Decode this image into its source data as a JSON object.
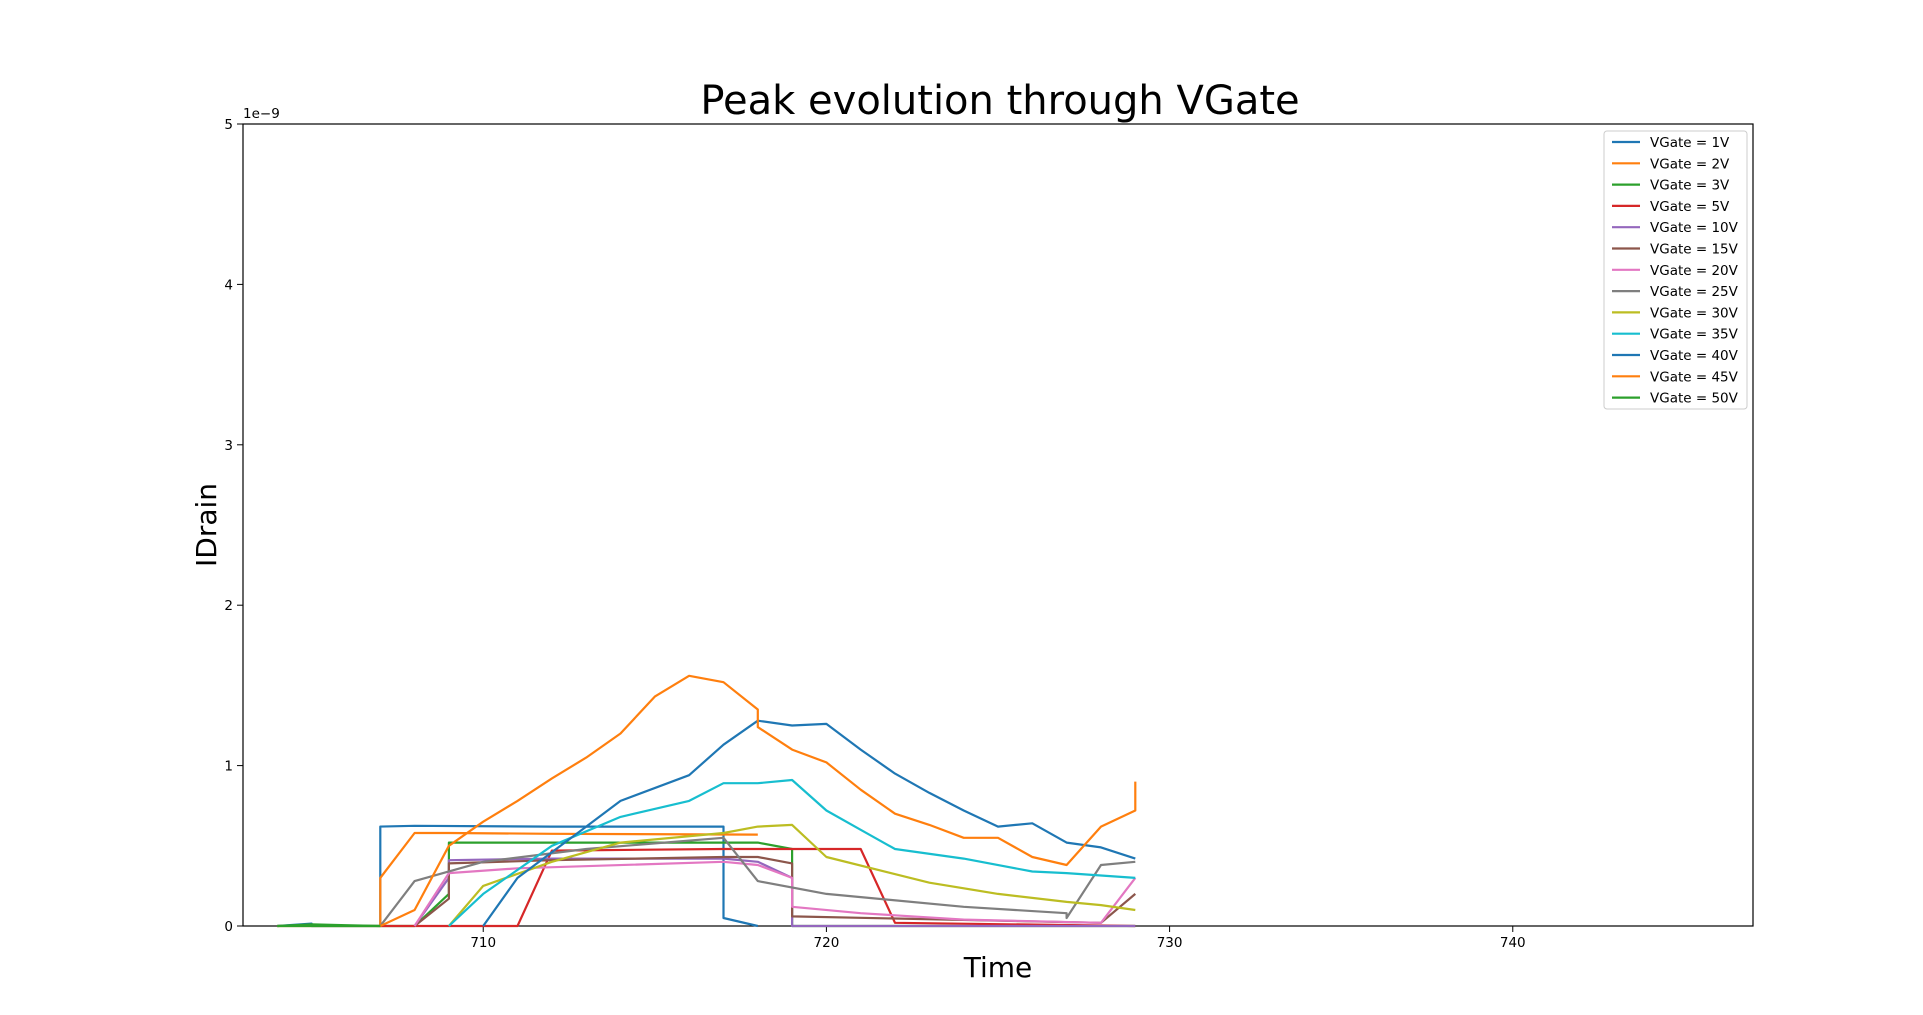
{
  "chart_data": {
    "type": "line",
    "title": "Peak evolution through VGate",
    "xlabel": "Time",
    "ylabel": "IDrain",
    "xlim": [
      703.0,
      747.0
    ],
    "ylim": [
      0,
      5e-09
    ],
    "y_offset_label": "1e−9",
    "x_ticks": [
      710,
      720,
      730,
      740
    ],
    "x_tick_labels": [
      "710",
      "720",
      "730",
      "740"
    ],
    "y_ticks": [
      0,
      1e-09,
      2e-09,
      3e-09,
      4e-09,
      5e-09
    ],
    "y_tick_labels": [
      "0",
      "1",
      "2",
      "3",
      "4",
      "5"
    ],
    "grid": false,
    "legend_position": "top-right",
    "series": [
      {
        "name": "VGate = 1V",
        "color": "#1f77b4",
        "x": [
          704,
          705,
          705,
          707,
          707,
          708,
          712,
          717,
          717,
          718,
          718
        ],
        "y": [
          0,
          1.5e-11,
          0,
          0,
          6.2e-10,
          6.25e-10,
          6.2e-10,
          6.2e-10,
          5e-11,
          0,
          0
        ]
      },
      {
        "name": "VGate = 2V",
        "color": "#ff7f0e",
        "x": [
          704,
          707,
          707,
          708,
          709,
          712,
          718
        ],
        "y": [
          0,
          0,
          3e-10,
          5.8e-10,
          5.8e-10,
          5.75e-10,
          5.7e-10
        ]
      },
      {
        "name": "VGate = 3V",
        "color": "#2ca02c",
        "x": [
          704,
          708,
          709,
          709,
          712,
          718,
          719,
          719,
          729
        ],
        "y": [
          0,
          0,
          2e-10,
          5.2e-10,
          5.2e-10,
          5.2e-10,
          4.8e-10,
          0,
          0
        ]
      },
      {
        "name": "VGate = 5V",
        "color": "#d62728",
        "x": [
          707,
          710,
          711,
          712,
          717,
          721,
          722,
          729
        ],
        "y": [
          0,
          0,
          0,
          4.7e-10,
          4.8e-10,
          4.8e-10,
          2e-11,
          0
        ]
      },
      {
        "name": "VGate = 10V",
        "color": "#9467bd",
        "x": [
          708,
          709,
          709,
          712,
          717,
          718,
          719,
          719,
          729
        ],
        "y": [
          0,
          3e-10,
          4.1e-10,
          4.2e-10,
          4.2e-10,
          4e-10,
          3e-10,
          0,
          0
        ]
      },
      {
        "name": "VGate = 15V",
        "color": "#8c564b",
        "x": [
          708,
          709,
          709,
          712,
          717,
          718,
          719,
          719,
          728,
          729
        ],
        "y": [
          0,
          1.7e-10,
          3.9e-10,
          4.1e-10,
          4.3e-10,
          4.3e-10,
          3.9e-10,
          6e-11,
          2e-11,
          2e-10
        ]
      },
      {
        "name": "VGate = 20V",
        "color": "#e377c2",
        "x": [
          708,
          709,
          711,
          717,
          718,
          719,
          719,
          721,
          724,
          728,
          729
        ],
        "y": [
          0,
          3.3e-10,
          3.6e-10,
          4e-10,
          3.8e-10,
          3e-10,
          1.2e-10,
          8e-11,
          4e-11,
          2e-11,
          3e-10
        ]
      },
      {
        "name": "VGate = 25V",
        "color": "#7f7f7f",
        "x": [
          707,
          708,
          710,
          713,
          717,
          718,
          720,
          724,
          727,
          727,
          728,
          729
        ],
        "y": [
          0,
          2.8e-10,
          4e-10,
          4.8e-10,
          5.5e-10,
          2.8e-10,
          2e-10,
          1.2e-10,
          8e-11,
          5e-11,
          3.8e-10,
          4e-10
        ]
      },
      {
        "name": "VGate = 30V",
        "color": "#bcbd22",
        "x": [
          709,
          710,
          712,
          714,
          717,
          718,
          719,
          720,
          723,
          725,
          727,
          728,
          729
        ],
        "y": [
          0,
          2.5e-10,
          4e-10,
          5.2e-10,
          5.8e-10,
          6.2e-10,
          6.3e-10,
          4.3e-10,
          2.7e-10,
          2e-10,
          1.5e-10,
          1.3e-10,
          1e-10
        ]
      },
      {
        "name": "VGate = 35V",
        "color": "#17becf",
        "x": [
          709,
          710,
          712,
          714,
          716,
          717,
          718,
          719,
          720,
          721,
          722,
          724,
          726,
          727,
          729
        ],
        "y": [
          0,
          2e-10,
          5e-10,
          6.8e-10,
          7.8e-10,
          8.9e-10,
          8.9e-10,
          9.1e-10,
          7.2e-10,
          6e-10,
          4.8e-10,
          4.2e-10,
          3.4e-10,
          3.3e-10,
          3e-10
        ]
      },
      {
        "name": "VGate = 40V",
        "color": "#1f77b4",
        "x": [
          710,
          711,
          713,
          714,
          716,
          717,
          718,
          719,
          720,
          721,
          722,
          723,
          724,
          725,
          726,
          727,
          728,
          729
        ],
        "y": [
          0,
          3e-10,
          6.2e-10,
          7.8e-10,
          9.4e-10,
          1.13e-09,
          1.28e-09,
          1.25e-09,
          1.26e-09,
          1.1e-09,
          9.5e-10,
          8.3e-10,
          7.2e-10,
          6.2e-10,
          6.4e-10,
          5.2e-10,
          4.9e-10,
          4.2e-10
        ]
      },
      {
        "name": "VGate = 45V",
        "color": "#ff7f0e",
        "x": [
          707,
          708,
          709,
          710,
          711,
          712,
          713,
          714,
          715,
          716,
          717,
          718,
          718,
          719,
          720,
          721,
          722,
          723,
          724,
          725,
          726,
          727,
          728,
          729,
          729
        ],
        "y": [
          0,
          1e-10,
          5e-10,
          6.5e-10,
          7.8e-10,
          9.2e-10,
          1.05e-09,
          1.2e-09,
          1.43e-09,
          1.56e-09,
          1.52e-09,
          1.35e-09,
          1.24e-09,
          1.1e-09,
          1.02e-09,
          8.5e-10,
          7e-10,
          6.3e-10,
          5.5e-10,
          5.5e-10,
          4.3e-10,
          3.8e-10,
          6.2e-10,
          7.2e-10,
          9e-10
        ]
      },
      {
        "name": "VGate = 50V",
        "color": "#2ca02c",
        "x": [
          704,
          705,
          706,
          707
        ],
        "y": [
          0,
          1e-11,
          5e-12,
          0
        ]
      }
    ]
  }
}
